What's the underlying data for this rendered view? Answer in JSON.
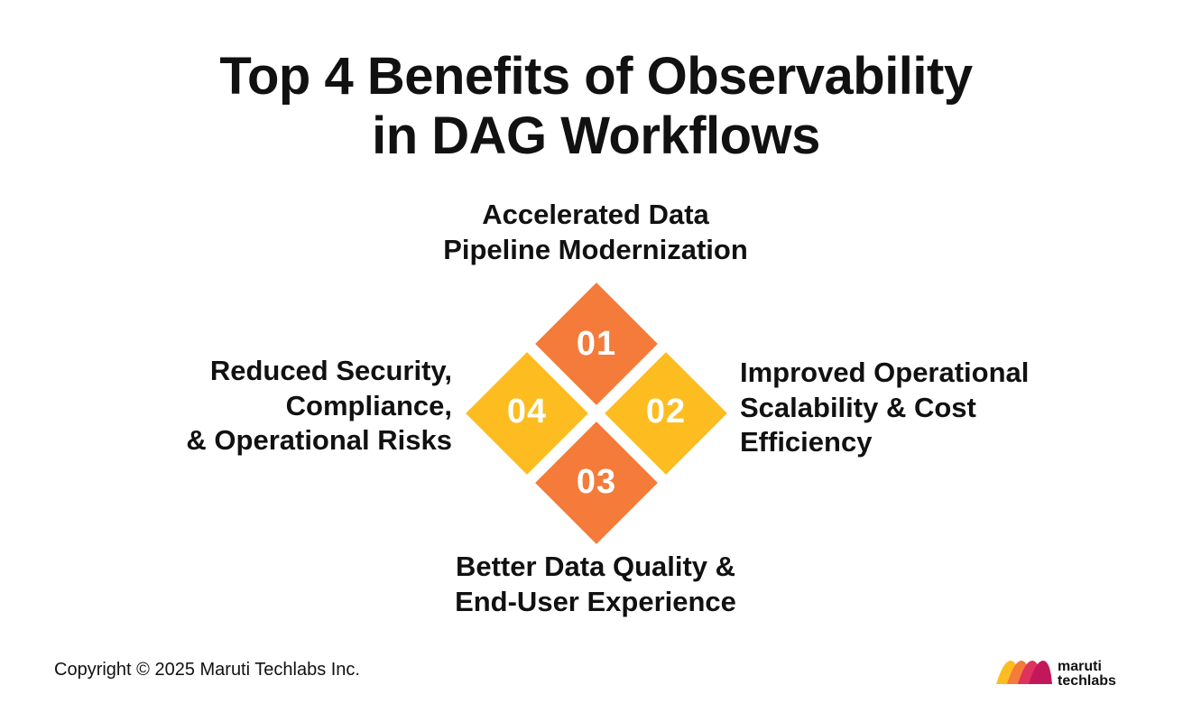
{
  "title": {
    "line1": "Top 4 Benefits of Observability",
    "line2": "in DAG Workflows"
  },
  "benefits": [
    {
      "number": "01",
      "lines": [
        "Accelerated Data",
        "Pipeline Modernization"
      ],
      "color": "#F47B3A"
    },
    {
      "number": "02",
      "lines": [
        "Improved Operational",
        "Scalability & Cost",
        "Efficiency"
      ],
      "color": "#FDBD21"
    },
    {
      "number": "03",
      "lines": [
        "Better Data Quality &",
        "End-User Experience"
      ],
      "color": "#F47B3A"
    },
    {
      "number": "04",
      "lines": [
        "Reduced Security,",
        "Compliance,",
        "& Operational Risks"
      ],
      "color": "#FDBD21"
    }
  ],
  "footer": {
    "copyright": "Copyright © 2025 Maruti Techlabs Inc."
  },
  "logo": {
    "line1": "maruti",
    "line2": "techlabs",
    "colors": [
      "#FDBD21",
      "#F47B3A",
      "#E0325E",
      "#C2185B"
    ]
  }
}
